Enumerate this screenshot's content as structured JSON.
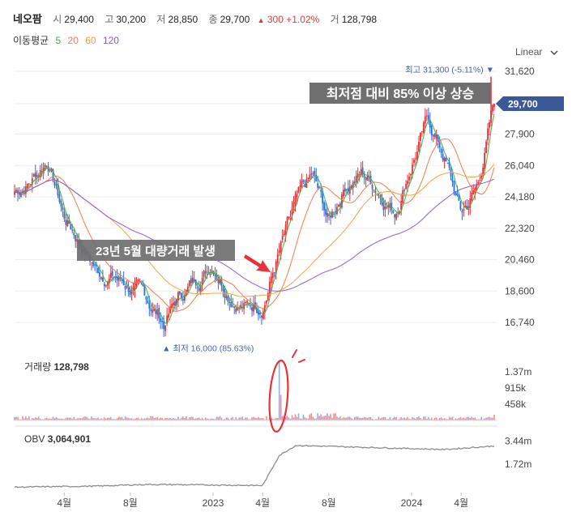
{
  "header": {
    "stock_name": "네오팜",
    "open_label": "시",
    "open_value": "29,400",
    "high_label": "고",
    "high_value": "30,200",
    "low_label": "저",
    "low_value": "28,850",
    "close_label": "종",
    "close_value": "29,700",
    "change_arrow": "▲",
    "change_value": "300",
    "change_pct": "+1.02%",
    "volume_label": "거",
    "volume_value": "128,798"
  },
  "moving_average": {
    "label": "이동평균",
    "periods": [
      {
        "label": "5",
        "color": "#3fae49"
      },
      {
        "label": "20",
        "color": "#f0794a"
      },
      {
        "label": "60",
        "color": "#f1a13f"
      },
      {
        "label": "120",
        "color": "#8a5bd6"
      }
    ]
  },
  "scale_toggle": {
    "label": "Linear",
    "icon": "chevron-down-icon"
  },
  "annotations": {
    "top_box": "최저점 대비 85% 이상 상승",
    "mid_box": "23년 5월 대량거래 발생",
    "high_marker": "최고 31,300 (-5.11%) ▼",
    "low_marker": "▲ 최저 16,000 (85.63%)"
  },
  "volume_panel": {
    "label": "거래량",
    "value": "128,798"
  },
  "obv_panel": {
    "label": "OBV",
    "value": "3,064,901"
  },
  "colors": {
    "up": "#e0333a",
    "down": "#2d6fd6",
    "ma5": "#3fae49",
    "ma20": "#f0794a",
    "ma60": "#f1a13f",
    "ma120": "#8a5bd6",
    "price_tag": "#3b5998",
    "marker_text": "#4a64a6",
    "obv_line": "#8c8c8c",
    "annotation_bg": "#6f6f6f",
    "arrow": "#e8323a",
    "circle": "#e8323a"
  },
  "chart_data": [
    {
      "type": "candlestick",
      "title": "네오팜",
      "y_axis": {
        "ticks": [
          "31,620",
          "29,700",
          "27,900",
          "26,040",
          "24,180",
          "22,320",
          "20,460",
          "18,600",
          "16,740"
        ],
        "ylim": [
          15500,
          32200
        ]
      },
      "x_axis": {
        "ticks": [
          "4월",
          "8월",
          "2023",
          "4월",
          "8월",
          "2024",
          "4월"
        ]
      },
      "last_price": "29,700",
      "high": {
        "value": 31300,
        "label": "최고 31,300 (-5.11%)"
      },
      "low": {
        "value": 16000,
        "label": "최저 16,000 (85.63%)"
      },
      "series": [
        {
          "name": "5",
          "kind": "moving_average"
        },
        {
          "name": "20",
          "kind": "moving_average"
        },
        {
          "name": "60",
          "kind": "moving_average"
        },
        {
          "name": "120",
          "kind": "moving_average"
        }
      ],
      "approx_close_path": {
        "x": [
          "2022-01",
          "2022-02",
          "2022-03",
          "2022-04",
          "2022-05",
          "2022-06",
          "2022-07",
          "2022-08",
          "2022-09",
          "2022-10",
          "2022-11",
          "2022-12",
          "2023-01",
          "2023-02",
          "2023-03",
          "2023-04",
          "2023-05",
          "2023-06",
          "2023-07",
          "2023-08",
          "2023-09",
          "2023-10",
          "2023-11",
          "2023-12",
          "2024-01",
          "2024-02",
          "2024-03",
          "2024-04",
          "2024-05",
          "2024-06"
        ],
        "y": [
          24500,
          25200,
          26500,
          23000,
          21500,
          19800,
          19500,
          18800,
          18000,
          16800,
          18300,
          19300,
          20400,
          18700,
          17700,
          18000,
          20900,
          23500,
          25200,
          22600,
          25000,
          25600,
          24700,
          23400,
          26300,
          28700,
          26500,
          23100,
          24800,
          29700
        ]
      }
    },
    {
      "type": "bar",
      "title": "거래량",
      "last_value": "128,798",
      "y_axis": {
        "ticks": [
          "1.37m",
          "915k",
          "458k"
        ],
        "ylim": [
          0,
          1800000
        ]
      },
      "spike": {
        "x": "2023-05",
        "value": 1650000
      }
    },
    {
      "type": "line",
      "title": "OBV",
      "last_value": "3,064,901",
      "y_axis": {
        "ticks": [
          "3.44m",
          "1.72m"
        ],
        "ylim": [
          -400000,
          4300000
        ]
      },
      "approx_path": {
        "x": [
          "2022-01",
          "2022-06",
          "2022-09",
          "2022-12",
          "2023-04",
          "2023-05",
          "2023-06",
          "2023-09",
          "2023-12",
          "2024-03",
          "2024-06"
        ],
        "y": [
          0,
          80000,
          200000,
          170000,
          120000,
          2350000,
          3100000,
          3000000,
          2900000,
          2800000,
          3060000
        ]
      }
    }
  ]
}
